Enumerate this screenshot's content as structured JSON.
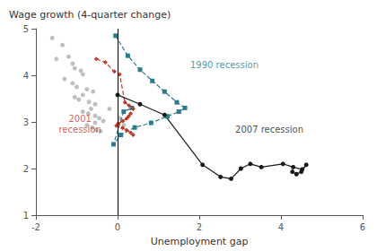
{
  "chart_data": {
    "type": "line",
    "ylabel": "Wage growth (4-quarter change)",
    "xlabel": "Unemployment gap",
    "xlim": [
      -2,
      6
    ],
    "ylim": [
      1,
      5
    ],
    "xticks": [
      -2,
      0,
      2,
      4,
      6
    ],
    "yticks": [
      1,
      2,
      3,
      4,
      5
    ],
    "grid": false,
    "series": [
      {
        "type": "scatter",
        "color": "#b0b0b0",
        "marker": "circle",
        "x": [
          -1.6,
          -1.35,
          -1.5,
          -1.2,
          -1.1,
          -1.05,
          -0.9,
          -0.85,
          -1.3,
          -1.1,
          -1.0,
          -0.75,
          -0.6,
          -0.85,
          -1.05,
          -0.95,
          -0.7,
          -0.55,
          -0.65,
          -0.85,
          -0.72,
          -0.55,
          -0.45,
          -0.35,
          -0.55,
          -0.75,
          -0.62,
          -0.52,
          -0.42,
          -0.2,
          0.05,
          0.15
        ],
        "values": [
          4.8,
          4.65,
          4.35,
          4.4,
          4.25,
          4.15,
          4.1,
          4.02,
          3.92,
          3.83,
          3.75,
          3.7,
          3.65,
          3.58,
          3.53,
          3.48,
          3.43,
          3.38,
          3.28,
          3.22,
          3.18,
          3.13,
          3.08,
          3.02,
          2.98,
          2.93,
          2.88,
          2.83,
          2.8,
          3.28,
          3.08,
          2.93
        ]
      },
      {
        "type": "line",
        "color": "#2a7b8c",
        "marker": "square",
        "line_style": "dashed",
        "x": [
          -0.05,
          0.25,
          0.55,
          0.85,
          1.15,
          1.45,
          1.65,
          1.5,
          1.22,
          0.82,
          0.42,
          0.08,
          -0.1,
          0.15,
          0.35
        ],
        "values": [
          4.85,
          4.42,
          4.12,
          3.88,
          3.65,
          3.42,
          3.3,
          3.22,
          3.12,
          2.98,
          2.88,
          2.72,
          2.52,
          3.22,
          3.3
        ]
      },
      {
        "type": "line",
        "color": "#c0392b",
        "marker": "diamond",
        "line_style": "dashed",
        "x": [
          -0.52,
          -0.3,
          -0.08,
          0.05,
          0.18,
          0.28,
          0.38,
          0.32,
          0.27,
          0.22,
          0.13,
          0.02,
          -0.03,
          0.12,
          0.22,
          0.32,
          0.38
        ],
        "values": [
          4.35,
          4.28,
          4.08,
          4.02,
          3.42,
          3.35,
          3.28,
          3.18,
          3.12,
          3.07,
          3.02,
          2.97,
          2.92,
          2.87,
          2.82,
          2.77,
          2.72
        ]
      },
      {
        "type": "line",
        "color": "#1a1a1a",
        "marker": "circle",
        "line_style": "solid",
        "x": [
          0.0,
          0.55,
          1.15,
          2.08,
          2.52,
          2.78,
          3.02,
          3.25,
          3.52,
          4.05,
          4.3,
          4.52,
          4.62,
          4.5,
          4.38,
          4.28
        ],
        "values": [
          3.58,
          3.38,
          3.15,
          2.08,
          1.82,
          1.78,
          2.0,
          2.1,
          2.03,
          2.1,
          2.03,
          1.98,
          2.08,
          1.93,
          1.88,
          1.93
        ]
      }
    ],
    "reference_lines": [
      {
        "x": 0,
        "color": "#000000"
      }
    ],
    "annotations": [
      {
        "text": "1990 recession",
        "x": 1.78,
        "y": 4.1,
        "color": "#2a7b8c"
      },
      {
        "text": "2001\nrecession",
        "x": -0.92,
        "y": 2.72,
        "color": "#c0392b",
        "align": "center"
      },
      {
        "text": "2007 recession",
        "x": 2.88,
        "y": 2.72,
        "color": "#1a1a1a"
      }
    ]
  }
}
